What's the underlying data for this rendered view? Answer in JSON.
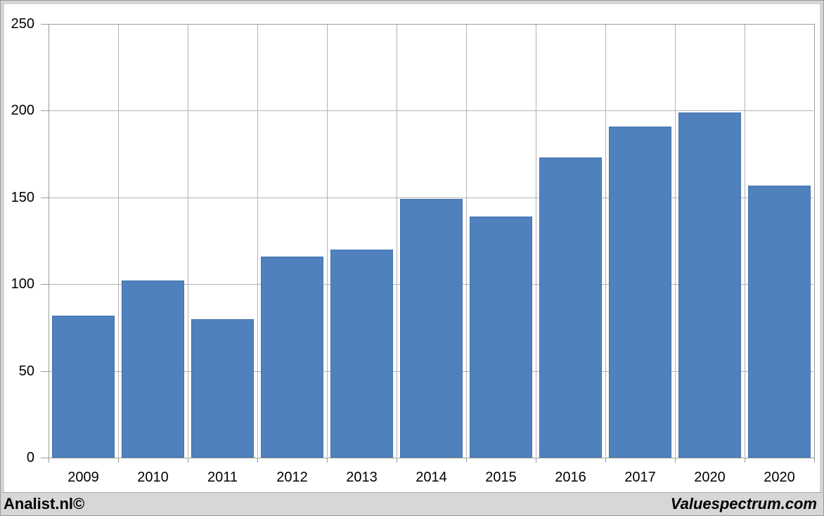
{
  "chart_data": {
    "type": "bar",
    "categories": [
      "2009",
      "2010",
      "2011",
      "2012",
      "2013",
      "2014",
      "2015",
      "2016",
      "2017",
      "2020",
      "2020"
    ],
    "values": [
      82,
      102,
      80,
      116,
      120,
      149,
      139,
      173,
      191,
      199,
      157
    ],
    "title": "",
    "xlabel": "",
    "ylabel": "",
    "ylim": [
      0,
      250
    ],
    "yticks": [
      0,
      50,
      100,
      150,
      200,
      250
    ],
    "grid": "horizontal value gridlines and vertical category gridlines",
    "legend_position": "none",
    "bar_color": "#4f81bd"
  },
  "footer": {
    "left_brand": "Analist.nl©",
    "right_brand": "Valuespectrum.com"
  },
  "colors": {
    "bar": "#4f81bd",
    "gridline": "#b2b2b2",
    "axis": "#9b9b9b",
    "frame": "#d4d4d4",
    "outer_edge": "#979797",
    "footer_bg": "#d7d7d7",
    "text": "#000000"
  }
}
